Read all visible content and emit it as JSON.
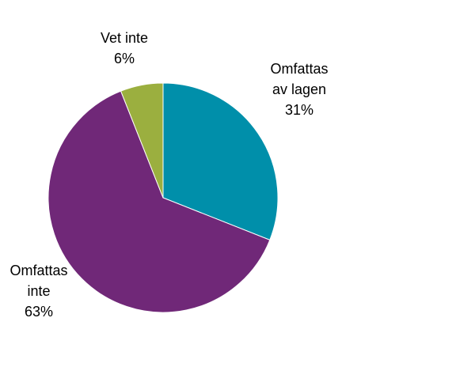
{
  "chart_data": {
    "type": "pie",
    "slices": [
      {
        "label_lines": [
          "Omfattas",
          "av lagen"
        ],
        "value": 31,
        "value_label": "31%",
        "color": "#008FAA"
      },
      {
        "label_lines": [
          "Omfattas",
          "inte"
        ],
        "value": 63,
        "value_label": "63%",
        "color": "#702878"
      },
      {
        "label_lines": [
          "Vet inte"
        ],
        "value": 6,
        "value_label": "6%",
        "color": "#9BAF3F"
      }
    ],
    "start_angle_deg": 0,
    "direction": "clockwise"
  }
}
